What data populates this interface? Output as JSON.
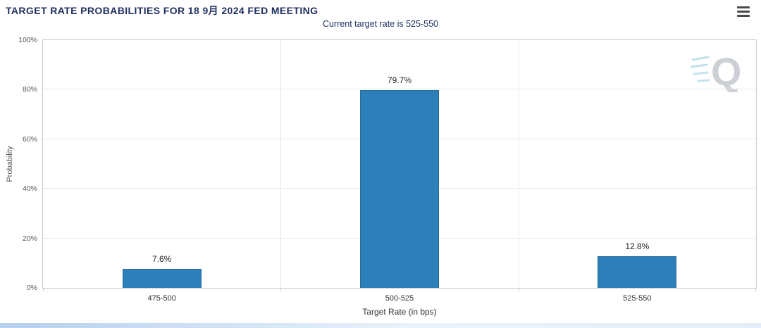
{
  "header": {
    "title": "TARGET RATE PROBABILITIES FOR 18 9月 2024 FED MEETING",
    "menu_icon": "hamburger"
  },
  "chart_data": {
    "type": "bar",
    "title": "TARGET RATE PROBABILITIES FOR 18 9月 2024 FED MEETING",
    "subtitle": "Current target rate is 525-550",
    "categories": [
      "475-500",
      "500-525",
      "525-550"
    ],
    "values": [
      7.6,
      79.7,
      12.8
    ],
    "value_labels": [
      "7.6%",
      "79.7%",
      "12.8%"
    ],
    "xlabel": "Target Rate (in bps)",
    "ylabel": "Probability",
    "ylim": [
      0,
      100
    ],
    "yticks": [
      0,
      20,
      40,
      60,
      80,
      100
    ],
    "ytick_labels": [
      "0%",
      "20%",
      "40%",
      "60%",
      "80%",
      "100%"
    ],
    "grid": true,
    "legend": "none",
    "bar_color": "#2d7fb9",
    "bar_border_color": "#266b9b"
  },
  "watermark": {
    "letter": "Q"
  },
  "colors": {
    "title": "#1e2f5f",
    "axis_text": "#555555",
    "grid": "#e8e8e8",
    "plot_border": "#cccccc"
  }
}
